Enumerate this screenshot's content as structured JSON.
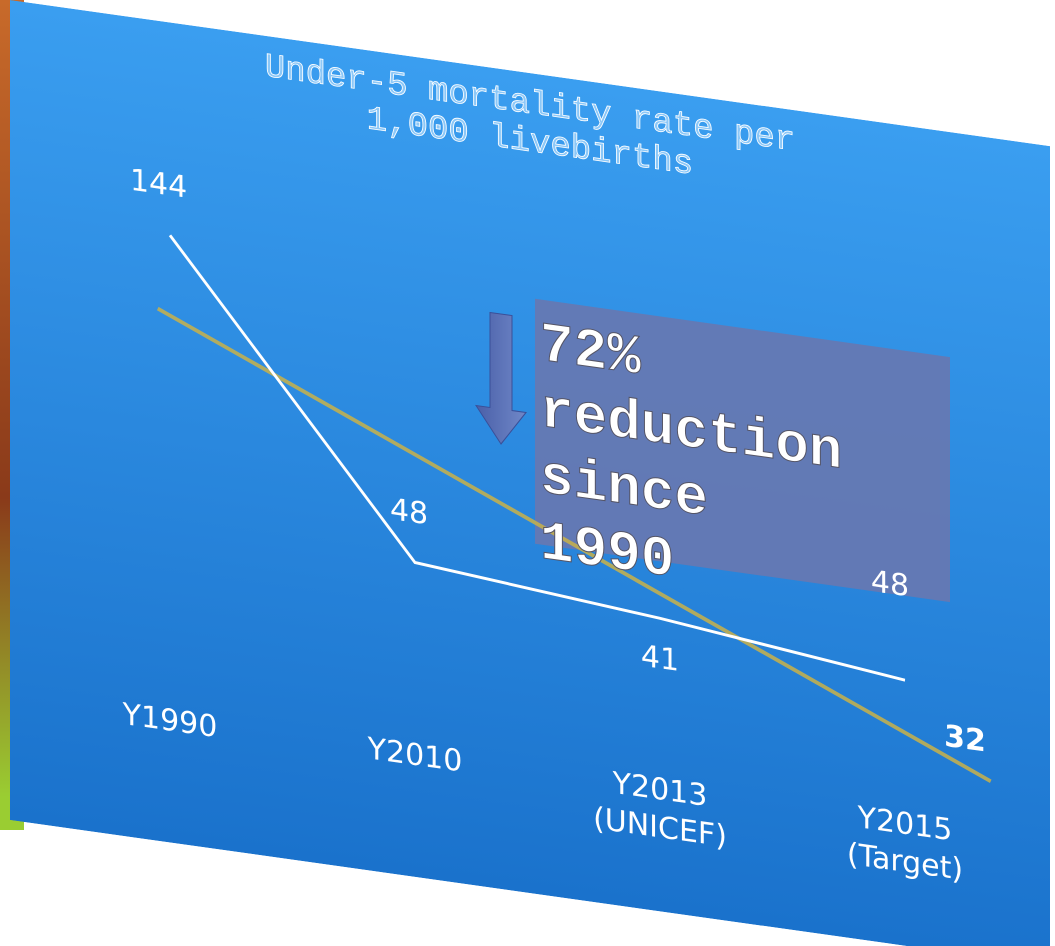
{
  "chart_data": {
    "type": "line",
    "title_lines": [
      "Under-5 mortality rate per",
      "1,000 livebirths"
    ],
    "categories": [
      "Y1990",
      "Y2010",
      "Y2013 (UNICEF)",
      "Y2015 (Target)"
    ],
    "series": [
      {
        "color": "#ffffff",
        "values": [
          144,
          48,
          41,
          32
        ]
      }
    ],
    "ylim": [
      0,
      160
    ],
    "trend_color": "#c9b24a",
    "annotation": "48",
    "callout_lines": [
      "72%",
      "reduction",
      "since",
      "1990"
    ]
  }
}
